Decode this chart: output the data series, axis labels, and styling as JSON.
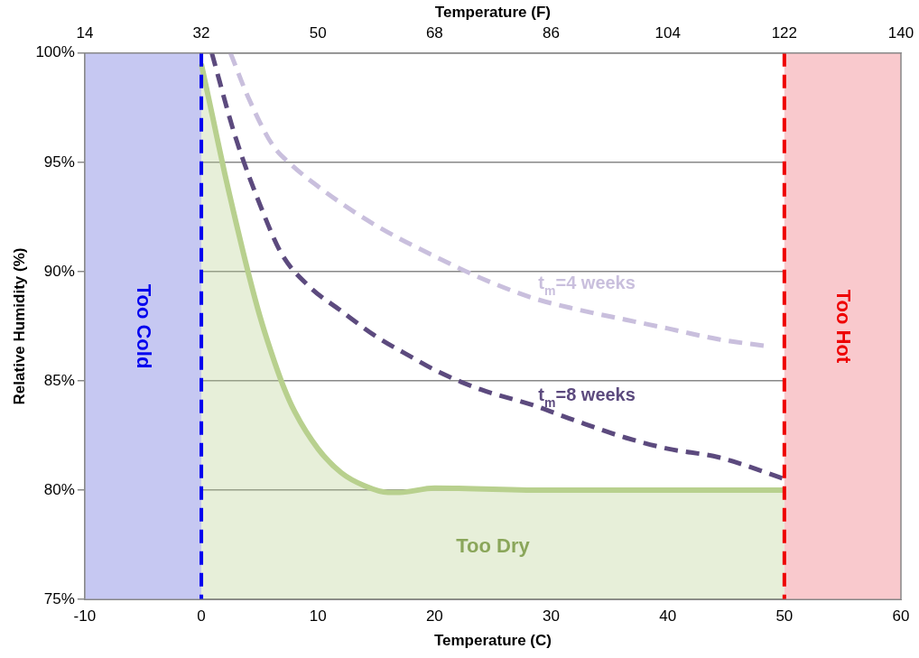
{
  "chart_data": {
    "type": "line",
    "xlabel": "Temperature (C)",
    "x2label": "Temperature (F)",
    "ylabel": "Relative Humidity (%)",
    "xlim": [
      -10,
      60
    ],
    "xticks": [
      -10,
      0,
      10,
      20,
      30,
      40,
      50,
      60
    ],
    "x2lim": [
      14,
      140
    ],
    "x2ticks": [
      14,
      32,
      50,
      68,
      86,
      104,
      122,
      140
    ],
    "ylim": [
      75,
      100
    ],
    "yticks": [
      {
        "value": 75,
        "label": "75%"
      },
      {
        "value": 80,
        "label": "80%"
      },
      {
        "value": 85,
        "label": "85%"
      },
      {
        "value": 90,
        "label": "90%"
      },
      {
        "value": 95,
        "label": "95%"
      },
      {
        "value": 100,
        "label": "100%"
      }
    ],
    "grid": "y",
    "legend": false,
    "marker": "none",
    "series": [
      {
        "type": "area",
        "color": "#b8d08e",
        "line_style": "solid",
        "x": [
          0,
          1,
          2,
          3,
          4,
          5,
          6,
          7,
          8,
          10,
          12,
          14,
          16,
          17,
          20,
          30,
          50
        ],
        "values": [
          99.5,
          97,
          94.5,
          92.2,
          90,
          88,
          86.3,
          84.8,
          83.6,
          81.9,
          80.8,
          80.2,
          79.9,
          79.9,
          80.1,
          80,
          80
        ]
      },
      {
        "name": "t$_{m}$=4 weeks",
        "color": "#c9bfdd",
        "line_style": "dashed",
        "x": [
          2.5,
          4,
          6.1,
          7.7,
          10,
          13.2,
          16,
          20.4,
          24,
          28.4,
          32,
          36.4,
          40,
          44.4,
          48.4
        ],
        "values": [
          100,
          98,
          95.8,
          94.9,
          93.9,
          92.7,
          91.8,
          90.6,
          89.7,
          88.8,
          88.3,
          87.8,
          87.4,
          86.9,
          86.6
        ]
      },
      {
        "name": "t$_{m}$=8 weeks",
        "color": "#5c4a7e",
        "line_style": "dashed",
        "x": [
          0.9,
          2.9,
          5.3,
          6.9,
          9.3,
          12,
          14.8,
          18,
          20.4,
          24,
          28.4,
          32,
          36.4,
          40,
          44.4,
          50.1
        ],
        "values": [
          100,
          96.2,
          92.7,
          90.8,
          89.3,
          88.2,
          87.1,
          86.1,
          85.4,
          84.6,
          83.9,
          83.2,
          82.4,
          81.9,
          81.5,
          80.5
        ]
      }
    ],
    "bands": [
      {
        "axis": "x",
        "from": -10,
        "to": 0,
        "label": "Too Cold",
        "color": "#c6c8f2"
      },
      {
        "axis": "x",
        "from": 50,
        "to": 60,
        "label": "Too Hot",
        "color": "#f9c9cd"
      }
    ],
    "ref_lines": [
      {
        "axis": "x",
        "value": 0,
        "color": "#0000ee",
        "line_style": "dashed"
      },
      {
        "axis": "x",
        "value": 50,
        "color": "#ee0000",
        "line_style": "dashed"
      }
    ],
    "annotations": [
      "Too Dry"
    ]
  }
}
